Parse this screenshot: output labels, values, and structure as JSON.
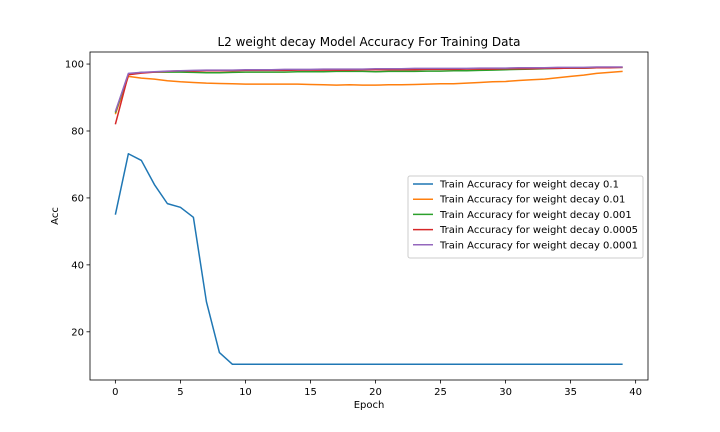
{
  "chart_data": {
    "type": "line",
    "title": "L2 weight decay Model Accuracy For Training Data",
    "xlabel": "Epoch",
    "ylabel": "Acc",
    "xlim": [
      -1.95,
      40.95
    ],
    "ylim": [
      5.6,
      103.6
    ],
    "xticks": [
      0,
      5,
      10,
      15,
      20,
      25,
      30,
      35,
      40
    ],
    "yticks": [
      20,
      40,
      60,
      80,
      100
    ],
    "grid": false,
    "legend_position": "center-right",
    "x": [
      0,
      1,
      2,
      3,
      4,
      5,
      6,
      7,
      8,
      9,
      10,
      11,
      12,
      13,
      14,
      15,
      16,
      17,
      18,
      19,
      20,
      21,
      22,
      23,
      24,
      25,
      26,
      27,
      28,
      29,
      30,
      31,
      32,
      33,
      34,
      35,
      36,
      37,
      38,
      39
    ],
    "series": [
      {
        "name": "Train Accuracy for weight decay 0.1",
        "color": "#1f77b4",
        "values": [
          55.0,
          73.2,
          71.2,
          64.0,
          58.3,
          57.2,
          54.2,
          29.0,
          13.8,
          10.3,
          10.3,
          10.3,
          10.3,
          10.3,
          10.3,
          10.3,
          10.3,
          10.3,
          10.3,
          10.3,
          10.3,
          10.3,
          10.3,
          10.3,
          10.3,
          10.3,
          10.3,
          10.3,
          10.3,
          10.3,
          10.3,
          10.3,
          10.3,
          10.3,
          10.3,
          10.3,
          10.3,
          10.3,
          10.3,
          10.3
        ]
      },
      {
        "name": "Train Accuracy for weight decay 0.01",
        "color": "#ff7f0e",
        "values": [
          85.0,
          96.3,
          95.8,
          95.5,
          95.0,
          94.7,
          94.5,
          94.3,
          94.2,
          94.1,
          94.0,
          94.0,
          94.0,
          94.0,
          94.0,
          93.9,
          93.8,
          93.7,
          93.8,
          93.7,
          93.7,
          93.8,
          93.8,
          93.9,
          94.0,
          94.1,
          94.1,
          94.3,
          94.5,
          94.7,
          94.8,
          95.1,
          95.3,
          95.5,
          95.9,
          96.3,
          96.7,
          97.2,
          97.5,
          97.8
        ]
      },
      {
        "name": "Train Accuracy for weight decay 0.001",
        "color": "#2ca02c",
        "values": [
          85.5,
          97.0,
          97.5,
          97.6,
          97.6,
          97.6,
          97.5,
          97.4,
          97.4,
          97.5,
          97.6,
          97.6,
          97.6,
          97.6,
          97.7,
          97.7,
          97.7,
          97.8,
          97.8,
          97.8,
          97.7,
          97.8,
          97.8,
          97.8,
          97.9,
          97.9,
          98.0,
          98.0,
          98.1,
          98.2,
          98.3,
          98.4,
          98.5,
          98.6,
          98.7,
          98.8,
          98.8,
          98.9,
          99.0,
          99.0
        ]
      },
      {
        "name": "Train Accuracy for weight decay 0.0005",
        "color": "#d62728",
        "values": [
          82.0,
          96.8,
          97.3,
          97.6,
          97.8,
          98.0,
          97.9,
          98.0,
          98.0,
          98.0,
          98.1,
          98.1,
          98.1,
          98.1,
          98.2,
          98.2,
          98.2,
          98.2,
          98.2,
          98.3,
          98.3,
          98.3,
          98.3,
          98.3,
          98.4,
          98.4,
          98.4,
          98.5,
          98.5,
          98.5,
          98.6,
          98.6,
          98.6,
          98.7,
          98.7,
          98.8,
          98.8,
          98.9,
          98.9,
          99.0
        ]
      },
      {
        "name": "Train Accuracy for weight decay 0.0001",
        "color": "#9467bd",
        "values": [
          85.8,
          97.2,
          97.5,
          97.7,
          97.9,
          98.0,
          98.1,
          98.2,
          98.2,
          98.2,
          98.3,
          98.3,
          98.3,
          98.4,
          98.4,
          98.4,
          98.5,
          98.5,
          98.5,
          98.5,
          98.6,
          98.6,
          98.6,
          98.7,
          98.7,
          98.7,
          98.7,
          98.7,
          98.8,
          98.8,
          98.8,
          98.9,
          98.9,
          98.9,
          99.0,
          99.0,
          99.0,
          99.1,
          99.1,
          99.1
        ]
      }
    ]
  }
}
